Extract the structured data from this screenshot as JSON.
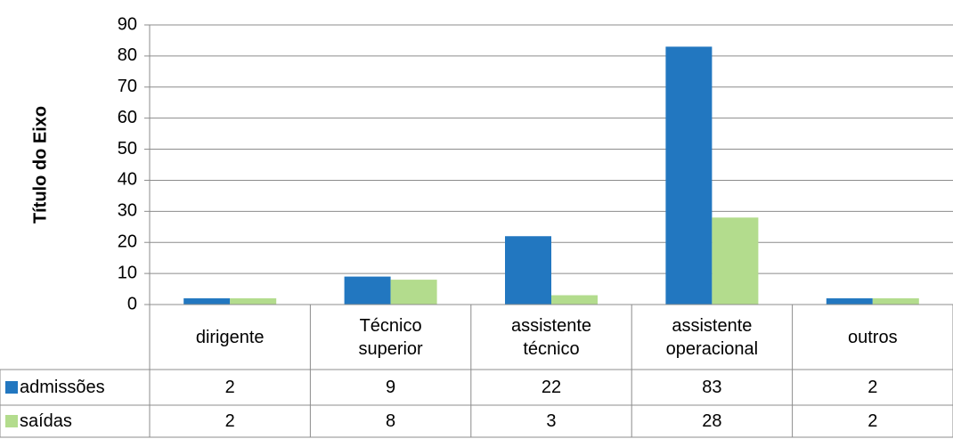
{
  "chart_data": {
    "type": "bar",
    "y_label": "Título do Eixo",
    "categories": [
      "dirigente",
      "Técnico superior",
      "assistente técnico",
      "assistente operacional",
      "outros"
    ],
    "series": [
      {
        "name": "admissões",
        "color": "#2277c0",
        "values": [
          2,
          9,
          22,
          83,
          2
        ]
      },
      {
        "name": "saídas",
        "color": "#b3dc8d",
        "values": [
          2,
          8,
          3,
          28,
          2
        ]
      }
    ],
    "ylim": [
      0,
      90
    ],
    "yticks": [
      0,
      10,
      20,
      30,
      40,
      50,
      60,
      70,
      80,
      90
    ],
    "grid": true
  }
}
